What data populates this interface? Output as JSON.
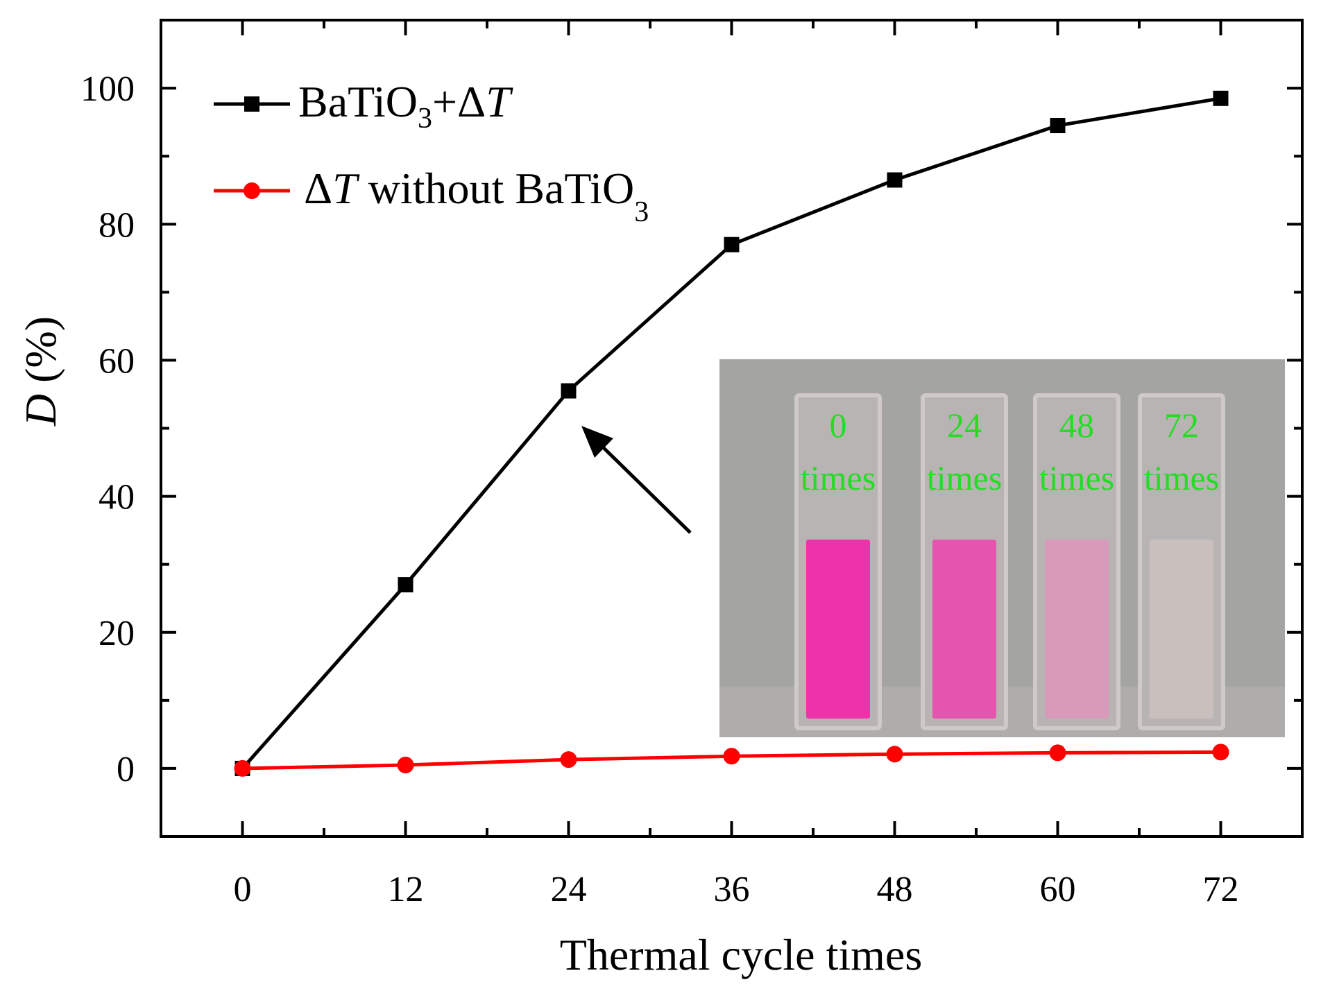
{
  "chart_data": {
    "type": "line",
    "xlabel": "Thermal cycle times",
    "ylabel_italic": "D",
    "ylabel_rest": " (%)",
    "x": [
      0,
      12,
      24,
      36,
      48,
      60,
      72
    ],
    "x_ticks": [
      "0",
      "12",
      "24",
      "36",
      "48",
      "60",
      "72"
    ],
    "y_ticks": [
      "0",
      "20",
      "40",
      "60",
      "80",
      "100"
    ],
    "xlim": [
      -6,
      78
    ],
    "ylim": [
      -10,
      110
    ],
    "series": [
      {
        "name": "BaTiO3+ΔT",
        "legend": {
          "base": "BaTiO",
          "sub": "3",
          "after": "+Δ",
          "italic": "T"
        },
        "color": "#000000",
        "marker": "square",
        "values": [
          0,
          27,
          55.5,
          77,
          86.5,
          94.5,
          98.5
        ]
      },
      {
        "name": "ΔT without BaTiO3",
        "legend": {
          "pre": "Δ",
          "italic": "T",
          "after": " without BaTiO",
          "sub": "3"
        },
        "color": "#ff0000",
        "marker": "circle",
        "values": [
          0,
          0.5,
          1.3,
          1.8,
          2.1,
          2.3,
          2.4
        ]
      }
    ],
    "inset": {
      "description_label_pairs": [
        {
          "num": "0",
          "unit": "times"
        },
        {
          "num": "24",
          "unit": "times"
        },
        {
          "num": "48",
          "unit": "times"
        },
        {
          "num": "72",
          "unit": "times"
        }
      ],
      "liquid_colors": [
        "#ee33aa",
        "#e455b0",
        "#d79ab8",
        "#c9bfbd"
      ]
    }
  }
}
